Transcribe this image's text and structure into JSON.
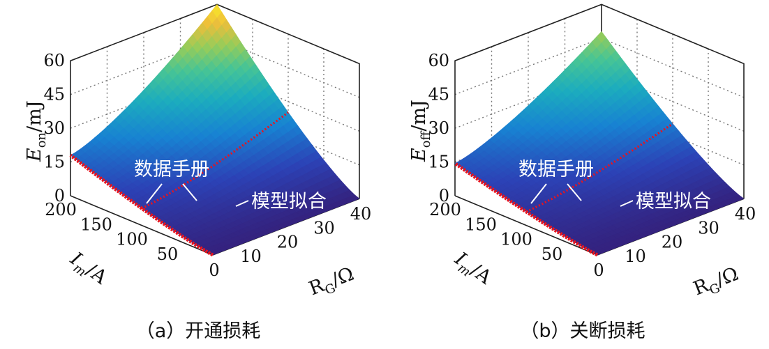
{
  "chart_data": [
    {
      "type": "surface3d",
      "caption": "（a）开通损耗",
      "z_axis": {
        "label_main": "E",
        "label_sub": "on",
        "label_unit": "/mJ",
        "ticks": [
          "0",
          "15",
          "30",
          "45",
          "60"
        ],
        "range": [
          0,
          60
        ]
      },
      "y_axis": {
        "label_main": "I",
        "label_sub": "m",
        "label_unit": "/A",
        "ticks": [
          "200",
          "150",
          "100",
          "50"
        ],
        "range": [
          0,
          200
        ]
      },
      "x_axis": {
        "label_main": "R",
        "label_sub": "G",
        "label_unit": "/Ω",
        "ticks": [
          "0",
          "10",
          "20",
          "30",
          "40"
        ],
        "range": [
          0,
          40
        ]
      },
      "surface_peak": 60,
      "annotations": [
        "数据手册",
        "模型拟合"
      ],
      "datasheet_line_color": "#e8141e"
    },
    {
      "type": "surface3d",
      "caption": "（b）关断损耗",
      "z_axis": {
        "label_main": "E",
        "label_sub": "off",
        "label_unit": "/mJ",
        "ticks": [
          "0",
          "15",
          "30",
          "45",
          "60"
        ],
        "range": [
          0,
          60
        ]
      },
      "y_axis": {
        "label_main": "I",
        "label_sub": "m",
        "label_unit": "/A",
        "ticks": [
          "200",
          "150",
          "100",
          "50"
        ],
        "range": [
          0,
          200
        ]
      },
      "x_axis": {
        "label_main": "R",
        "label_sub": "G",
        "label_unit": "/Ω",
        "ticks": [
          "0",
          "10",
          "20",
          "30",
          "40"
        ],
        "range": [
          0,
          40
        ]
      },
      "surface_peak": 48,
      "annotations": [
        "数据手册",
        "模型拟合"
      ],
      "datasheet_line_color": "#e8141e"
    }
  ]
}
